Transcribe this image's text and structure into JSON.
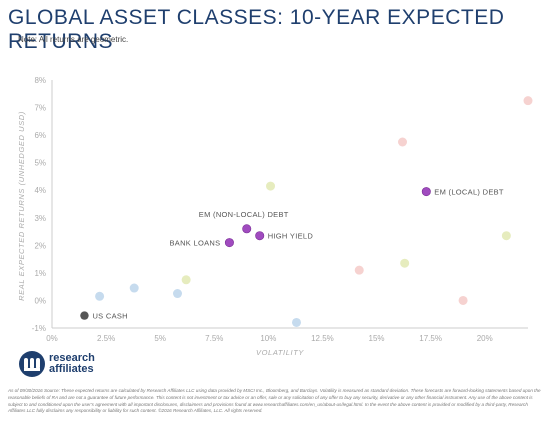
{
  "header": {
    "title": "GLOBAL ASSET CLASSES: 10-YEAR EXPECTED RETURNS",
    "note": "Note: All returns are geometric."
  },
  "chart_data": {
    "type": "scatter",
    "title": "GLOBAL ASSET CLASSES: 10-YEAR EXPECTED RETURNS",
    "xlabel": "VOLATILITY",
    "ylabel": "REAL EXPECTED RETURNS (UNHEDGED USD)",
    "xlim": [
      0,
      22
    ],
    "ylim": [
      -1,
      8
    ],
    "x_ticks": [
      {
        "value": 0,
        "label": "0%"
      },
      {
        "value": 2.5,
        "label": "2.5%"
      },
      {
        "value": 5,
        "label": "5%"
      },
      {
        "value": 7.5,
        "label": "7.5%"
      },
      {
        "value": 10,
        "label": "10%"
      },
      {
        "value": 12.5,
        "label": "12.5%"
      },
      {
        "value": 15,
        "label": "15%"
      },
      {
        "value": 17.5,
        "label": "17.5%"
      },
      {
        "value": 20,
        "label": "20%"
      }
    ],
    "y_ticks": [
      {
        "value": -1,
        "label": "-1%"
      },
      {
        "value": 0,
        "label": "0%"
      },
      {
        "value": 1,
        "label": "1%"
      },
      {
        "value": 2,
        "label": "2%"
      },
      {
        "value": 3,
        "label": "3%"
      },
      {
        "value": 4,
        "label": "4%"
      },
      {
        "value": 5,
        "label": "5%"
      },
      {
        "value": 6,
        "label": "6%"
      },
      {
        "value": 7,
        "label": "7%"
      },
      {
        "value": 8,
        "label": "8%"
      }
    ],
    "grid": false,
    "points": [
      {
        "x": 1.5,
        "y": -0.55,
        "label": "US CASH",
        "color": "#555555",
        "highlight": true
      },
      {
        "x": 8.2,
        "y": 2.1,
        "label": "BANK LOANS",
        "color": "#a04bbf",
        "highlight": true
      },
      {
        "x": 9.0,
        "y": 2.6,
        "label": "EM (NON-LOCAL) DEBT",
        "color": "#a04bbf",
        "highlight": true
      },
      {
        "x": 9.6,
        "y": 2.35,
        "label": "HIGH YIELD",
        "color": "#a04bbf",
        "highlight": true
      },
      {
        "x": 17.3,
        "y": 3.95,
        "label": "EM (LOCAL) DEBT",
        "color": "#a04bbf",
        "highlight": true
      },
      {
        "x": 2.2,
        "y": 0.15,
        "label": "",
        "color": "#c6dbee",
        "highlight": false
      },
      {
        "x": 3.8,
        "y": 0.45,
        "label": "",
        "color": "#c6dbee",
        "highlight": false
      },
      {
        "x": 5.8,
        "y": 0.25,
        "label": "",
        "color": "#c6dbee",
        "highlight": false
      },
      {
        "x": 11.3,
        "y": -0.8,
        "label": "",
        "color": "#c6dbee",
        "highlight": false
      },
      {
        "x": 6.2,
        "y": 0.75,
        "label": "",
        "color": "#e6ecbe",
        "highlight": false
      },
      {
        "x": 10.1,
        "y": 4.15,
        "label": "",
        "color": "#e6ecbe",
        "highlight": false
      },
      {
        "x": 16.3,
        "y": 1.35,
        "label": "",
        "color": "#e6ecbe",
        "highlight": false
      },
      {
        "x": 21.0,
        "y": 2.35,
        "label": "",
        "color": "#e6ecbe",
        "highlight": false
      },
      {
        "x": 14.2,
        "y": 1.1,
        "label": "",
        "color": "#f6d2d0",
        "highlight": false
      },
      {
        "x": 16.2,
        "y": 5.75,
        "label": "",
        "color": "#f6d2d0",
        "highlight": false
      },
      {
        "x": 19.0,
        "y": 0.0,
        "label": "",
        "color": "#f6d2d0",
        "highlight": false
      },
      {
        "x": 22.0,
        "y": 7.25,
        "label": "",
        "color": "#f6d2d0",
        "highlight": false
      }
    ]
  },
  "logo": {
    "line1": "research",
    "line2": "affiliates"
  },
  "footnote": "As of 09/30/2016 Source: These expected returns are calculated by Research Affiliates LLC using data provided by MSCI Inc., Bloomberg, and Barclays. Volatility is measured as standard deviation. These forecasts are forward-looking statements based upon the reasonable beliefs of RA and are not a guarantee of future performance. This content is not investment or tax advice or an offer, sale or any solicitation of any offer to buy any security, derivative or any other financial instrument. Any use of the above content is subject to and conditioned upon the user's agreement with all important disclosures, disclaimers and provisions found at www.researchaffiliates.com/en_us/about-us/legal.html. In the event the above content is provided or modified by a third-party, Research Affiliates LLC fully disclaims any responsibility or liability for such content. ©2016 Research Affiliates, LLC. All rights reserved."
}
